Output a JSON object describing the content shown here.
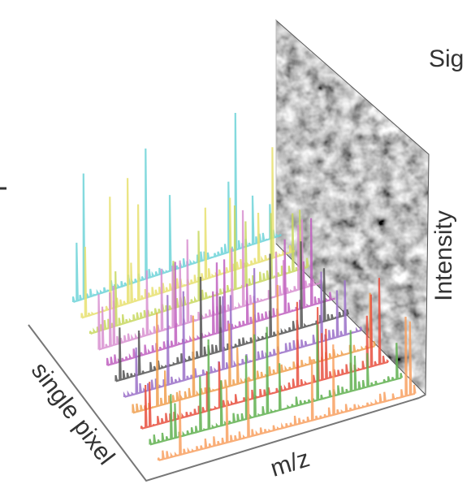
{
  "labels": {
    "signal": "Sig",
    "intensity": "Intensity",
    "mz": "m/z",
    "pixel": "single pixel"
  }
}
